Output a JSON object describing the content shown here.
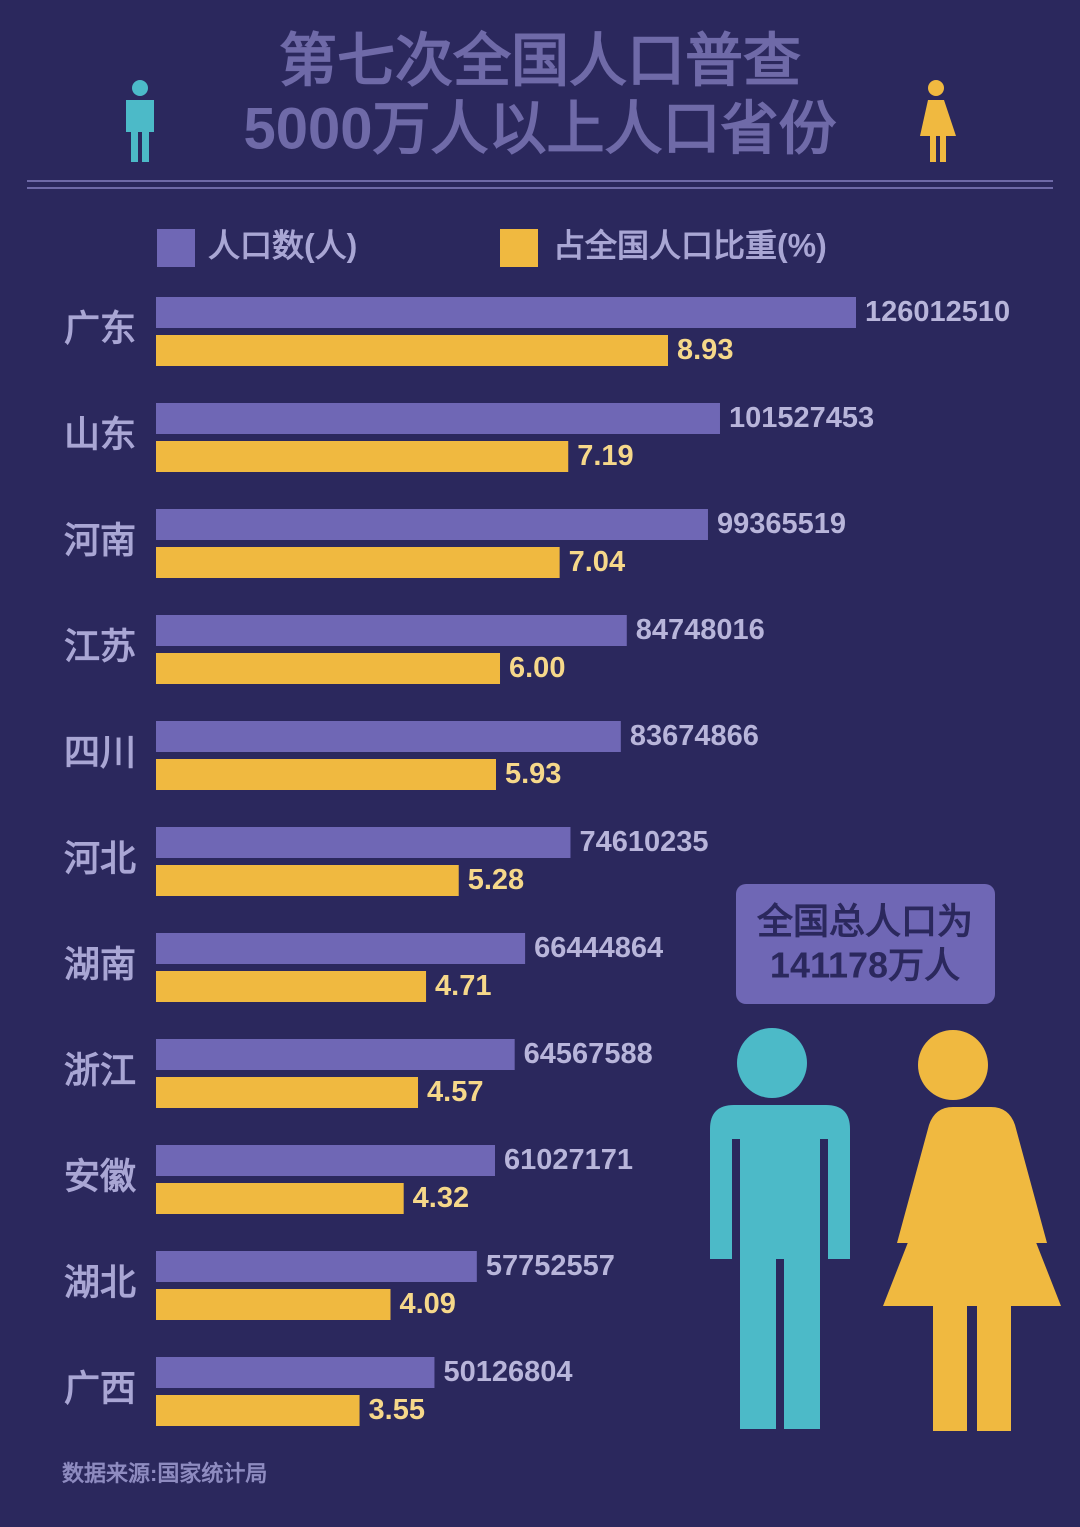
{
  "chart_data": {
    "type": "bar",
    "orientation": "horizontal",
    "title": "第七次全国人口普查",
    "subtitle": "5000万人以上人口省份",
    "categories": [
      "广东",
      "山东",
      "河南",
      "江苏",
      "四川",
      "河北",
      "湖南",
      "浙江",
      "安徽",
      "湖北",
      "广西"
    ],
    "series": [
      {
        "name": "人口数(人)",
        "color": "#6f67b5",
        "values": [
          126012510,
          101527453,
          99365519,
          84748016,
          83674866,
          74610235,
          66444864,
          64567588,
          61027171,
          57752557,
          50126804
        ]
      },
      {
        "name": "占全国人口比重(%)",
        "color": "#f0b940",
        "values": [
          8.93,
          7.19,
          7.04,
          6.0,
          5.93,
          5.28,
          4.71,
          4.57,
          4.32,
          4.09,
          3.55
        ],
        "value_labels": [
          "8.93",
          "7.19",
          "7.04",
          "6.00",
          "5.93",
          "5.28",
          "4.71",
          "4.57",
          "4.32",
          "4.09",
          "3.55"
        ]
      }
    ],
    "legend": "top",
    "annotations": [
      "全国总人口为",
      "141178万人"
    ],
    "source": "数据来源:国家统计局"
  }
}
